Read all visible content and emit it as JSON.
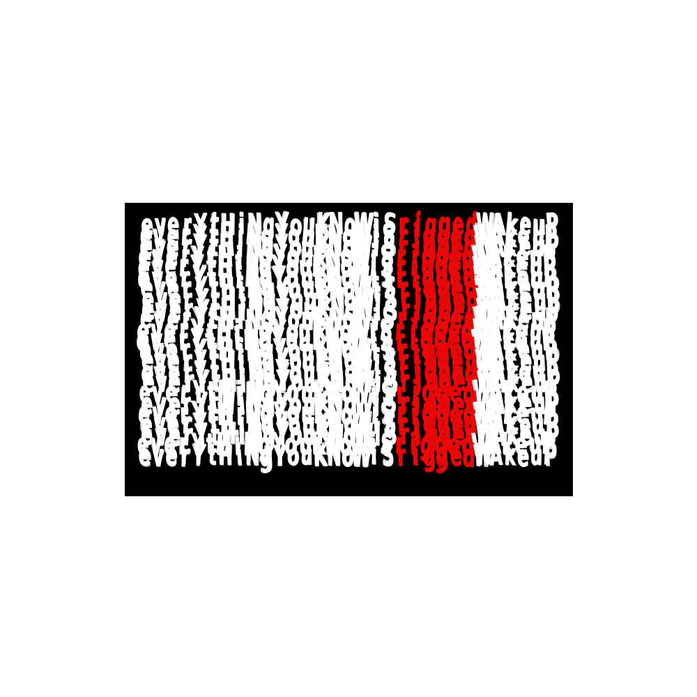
{
  "artwork": {
    "full_phrase": "everYtHiNgYouKNoWiS rigged WAkeuP",
    "segments": [
      {
        "text": "everYtHiNgYouKNoWiS",
        "color_role": "white"
      },
      {
        "text": "rigged",
        "color_role": "accent"
      },
      {
        "text": "WAkeuP",
        "color_role": "white"
      }
    ],
    "repetitions": 23,
    "colors": {
      "page_background": "#ffffff",
      "canvas_background": "#000000",
      "white": "#ffffff",
      "accent": "#ea0707"
    }
  }
}
